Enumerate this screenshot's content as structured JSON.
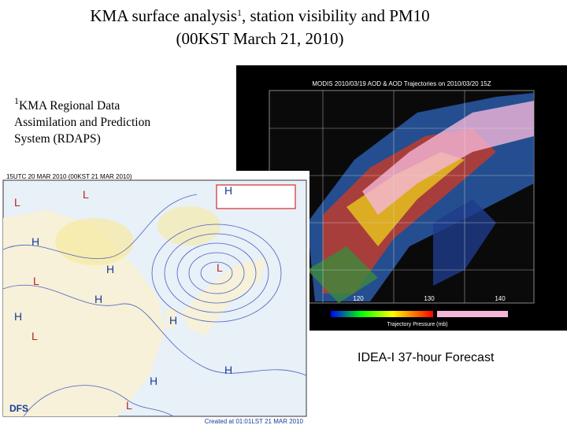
{
  "title": {
    "main": "KMA surface analysis",
    "superscript": "1",
    "rest": ", station visibility and PM10",
    "line2": "(00KST March 21, 2010)"
  },
  "footnote": {
    "marker": "1",
    "lines": [
      "KMA Regional Data",
      "Assimilation and Prediction",
      "System (RDAPS)"
    ]
  },
  "surface_map": {
    "header": "15UTC 20 MAR 2010 (00KST 21 MAR 2010)",
    "logo": "DFS",
    "footer": "Created at 01:01LST 21 MAR 2010",
    "pressure_labels": [
      "L",
      "L",
      "H",
      "L",
      "H",
      "H",
      "L",
      "H",
      "H",
      "L",
      "H",
      "H",
      "L",
      "H"
    ]
  },
  "satellite_map": {
    "header": "MODIS 2010/03/19 AOD & AOD Trajectories on 2010/03/20 15Z",
    "lon_labels": [
      "120",
      "130",
      "140"
    ],
    "footer": "Trajectory Pressure (mb)"
  },
  "caption": "IDEA-I 37-hour Forecast"
}
